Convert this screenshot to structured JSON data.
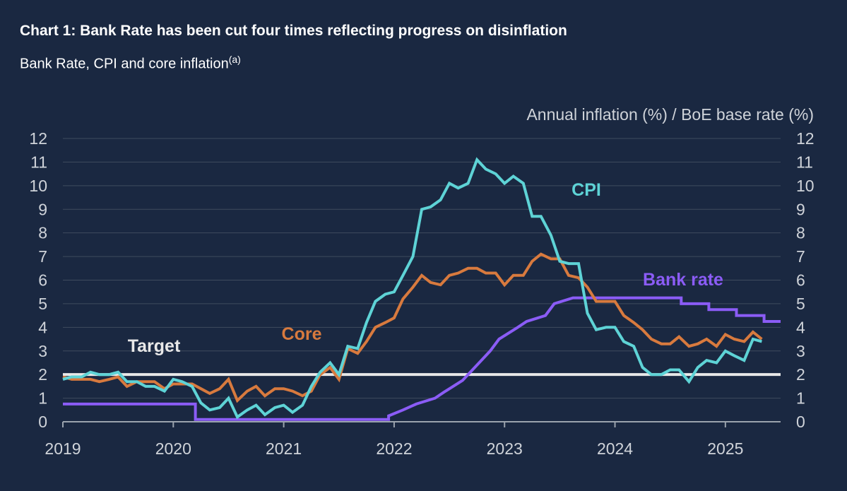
{
  "header": {
    "title": "Chart 1: Bank Rate has been cut four times reflecting progress on disinflation",
    "subtitle": "Bank Rate, CPI and core inflation",
    "subtitle_note": "(a)"
  },
  "chart_data": {
    "type": "line",
    "ylabel": "Annual inflation (%) / BoE base rate (%)",
    "ylim": [
      0,
      12
    ],
    "yticks": [
      "0",
      "1",
      "2",
      "3",
      "4",
      "5",
      "6",
      "7",
      "8",
      "9",
      "10",
      "11",
      "12"
    ],
    "xlim": [
      2019.0,
      2025.5
    ],
    "xticks": [
      {
        "value": 2019,
        "label": "2019"
      },
      {
        "value": 2020,
        "label": "2020"
      },
      {
        "value": 2021,
        "label": "2021"
      },
      {
        "value": 2022,
        "label": "2022"
      },
      {
        "value": 2023,
        "label": "2023"
      },
      {
        "value": 2024,
        "label": "2024"
      },
      {
        "value": 2025,
        "label": "2025"
      }
    ],
    "target": {
      "label": "Target",
      "value": 2,
      "color": "#e8e8e8"
    },
    "series": [
      {
        "name": "Bank rate",
        "label": "Bank rate",
        "color": "#8b5cf6",
        "step": true,
        "points": [
          [
            2019.0,
            0.75
          ],
          [
            2020.2,
            0.75
          ],
          [
            2020.2,
            0.1
          ],
          [
            2021.95,
            0.1
          ],
          [
            2021.95,
            0.25
          ],
          [
            2022.08,
            0.5
          ],
          [
            2022.2,
            0.75
          ],
          [
            2022.37,
            1.0
          ],
          [
            2022.45,
            1.25
          ],
          [
            2022.62,
            1.75
          ],
          [
            2022.72,
            2.25
          ],
          [
            2022.87,
            3.0
          ],
          [
            2022.95,
            3.5
          ],
          [
            2023.12,
            4.0
          ],
          [
            2023.2,
            4.25
          ],
          [
            2023.37,
            4.5
          ],
          [
            2023.45,
            5.0
          ],
          [
            2023.62,
            5.25
          ],
          [
            2024.6,
            5.25
          ],
          [
            2024.6,
            5.0
          ],
          [
            2024.85,
            5.0
          ],
          [
            2024.85,
            4.75
          ],
          [
            2025.1,
            4.75
          ],
          [
            2025.1,
            4.5
          ],
          [
            2025.35,
            4.5
          ],
          [
            2025.35,
            4.25
          ],
          [
            2025.5,
            4.25
          ]
        ]
      },
      {
        "name": "CPI",
        "label": "CPI",
        "color": "#5ed3d6",
        "step": false,
        "points": [
          [
            2019.0,
            1.8
          ],
          [
            2019.08,
            1.9
          ],
          [
            2019.17,
            1.9
          ],
          [
            2019.25,
            2.1
          ],
          [
            2019.33,
            2.0
          ],
          [
            2019.42,
            2.0
          ],
          [
            2019.5,
            2.1
          ],
          [
            2019.58,
            1.7
          ],
          [
            2019.67,
            1.7
          ],
          [
            2019.75,
            1.5
          ],
          [
            2019.83,
            1.5
          ],
          [
            2019.92,
            1.3
          ],
          [
            2020.0,
            1.8
          ],
          [
            2020.08,
            1.7
          ],
          [
            2020.17,
            1.5
          ],
          [
            2020.25,
            0.8
          ],
          [
            2020.33,
            0.5
          ],
          [
            2020.42,
            0.6
          ],
          [
            2020.5,
            1.0
          ],
          [
            2020.58,
            0.2
          ],
          [
            2020.67,
            0.5
          ],
          [
            2020.75,
            0.7
          ],
          [
            2020.83,
            0.3
          ],
          [
            2020.92,
            0.6
          ],
          [
            2021.0,
            0.7
          ],
          [
            2021.08,
            0.4
          ],
          [
            2021.17,
            0.7
          ],
          [
            2021.25,
            1.5
          ],
          [
            2021.33,
            2.1
          ],
          [
            2021.42,
            2.5
          ],
          [
            2021.5,
            2.0
          ],
          [
            2021.58,
            3.2
          ],
          [
            2021.67,
            3.1
          ],
          [
            2021.75,
            4.2
          ],
          [
            2021.83,
            5.1
          ],
          [
            2021.92,
            5.4
          ],
          [
            2022.0,
            5.5
          ],
          [
            2022.08,
            6.2
          ],
          [
            2022.17,
            7.0
          ],
          [
            2022.25,
            9.0
          ],
          [
            2022.33,
            9.1
          ],
          [
            2022.42,
            9.4
          ],
          [
            2022.5,
            10.1
          ],
          [
            2022.58,
            9.9
          ],
          [
            2022.67,
            10.1
          ],
          [
            2022.75,
            11.1
          ],
          [
            2022.83,
            10.7
          ],
          [
            2022.92,
            10.5
          ],
          [
            2023.0,
            10.1
          ],
          [
            2023.08,
            10.4
          ],
          [
            2023.17,
            10.1
          ],
          [
            2023.25,
            8.7
          ],
          [
            2023.33,
            8.7
          ],
          [
            2023.42,
            7.9
          ],
          [
            2023.5,
            6.8
          ],
          [
            2023.58,
            6.7
          ],
          [
            2023.67,
            6.7
          ],
          [
            2023.75,
            4.6
          ],
          [
            2023.83,
            3.9
          ],
          [
            2023.92,
            4.0
          ],
          [
            2024.0,
            4.0
          ],
          [
            2024.08,
            3.4
          ],
          [
            2024.17,
            3.2
          ],
          [
            2024.25,
            2.3
          ],
          [
            2024.33,
            2.0
          ],
          [
            2024.42,
            2.0
          ],
          [
            2024.5,
            2.2
          ],
          [
            2024.58,
            2.2
          ],
          [
            2024.67,
            1.7
          ],
          [
            2024.75,
            2.3
          ],
          [
            2024.83,
            2.6
          ],
          [
            2024.92,
            2.5
          ],
          [
            2025.0,
            3.0
          ],
          [
            2025.08,
            2.8
          ],
          [
            2025.17,
            2.6
          ],
          [
            2025.25,
            3.5
          ],
          [
            2025.33,
            3.4
          ]
        ]
      },
      {
        "name": "Core",
        "label": "Core",
        "color": "#d87a3e",
        "step": false,
        "points": [
          [
            2019.0,
            1.9
          ],
          [
            2019.08,
            1.8
          ],
          [
            2019.17,
            1.8
          ],
          [
            2019.25,
            1.8
          ],
          [
            2019.33,
            1.7
          ],
          [
            2019.42,
            1.8
          ],
          [
            2019.5,
            1.9
          ],
          [
            2019.58,
            1.5
          ],
          [
            2019.67,
            1.7
          ],
          [
            2019.75,
            1.7
          ],
          [
            2019.83,
            1.7
          ],
          [
            2019.92,
            1.4
          ],
          [
            2020.0,
            1.6
          ],
          [
            2020.08,
            1.6
          ],
          [
            2020.17,
            1.6
          ],
          [
            2020.25,
            1.4
          ],
          [
            2020.33,
            1.2
          ],
          [
            2020.42,
            1.4
          ],
          [
            2020.5,
            1.8
          ],
          [
            2020.58,
            0.9
          ],
          [
            2020.67,
            1.3
          ],
          [
            2020.75,
            1.5
          ],
          [
            2020.83,
            1.1
          ],
          [
            2020.92,
            1.4
          ],
          [
            2021.0,
            1.4
          ],
          [
            2021.08,
            1.3
          ],
          [
            2021.17,
            1.1
          ],
          [
            2021.25,
            1.3
          ],
          [
            2021.33,
            2.0
          ],
          [
            2021.42,
            2.3
          ],
          [
            2021.5,
            1.8
          ],
          [
            2021.58,
            3.1
          ],
          [
            2021.67,
            2.9
          ],
          [
            2021.75,
            3.4
          ],
          [
            2021.83,
            4.0
          ],
          [
            2021.92,
            4.2
          ],
          [
            2022.0,
            4.4
          ],
          [
            2022.08,
            5.2
          ],
          [
            2022.17,
            5.7
          ],
          [
            2022.25,
            6.2
          ],
          [
            2022.33,
            5.9
          ],
          [
            2022.42,
            5.8
          ],
          [
            2022.5,
            6.2
          ],
          [
            2022.58,
            6.3
          ],
          [
            2022.67,
            6.5
          ],
          [
            2022.75,
            6.5
          ],
          [
            2022.83,
            6.3
          ],
          [
            2022.92,
            6.3
          ],
          [
            2023.0,
            5.8
          ],
          [
            2023.08,
            6.2
          ],
          [
            2023.17,
            6.2
          ],
          [
            2023.25,
            6.8
          ],
          [
            2023.33,
            7.1
          ],
          [
            2023.42,
            6.9
          ],
          [
            2023.5,
            6.9
          ],
          [
            2023.58,
            6.2
          ],
          [
            2023.67,
            6.1
          ],
          [
            2023.75,
            5.7
          ],
          [
            2023.83,
            5.1
          ],
          [
            2023.92,
            5.1
          ],
          [
            2024.0,
            5.1
          ],
          [
            2024.08,
            4.5
          ],
          [
            2024.17,
            4.2
          ],
          [
            2024.25,
            3.9
          ],
          [
            2024.33,
            3.5
          ],
          [
            2024.42,
            3.3
          ],
          [
            2024.5,
            3.3
          ],
          [
            2024.58,
            3.6
          ],
          [
            2024.67,
            3.2
          ],
          [
            2024.75,
            3.3
          ],
          [
            2024.83,
            3.5
          ],
          [
            2024.92,
            3.2
          ],
          [
            2025.0,
            3.7
          ],
          [
            2025.08,
            3.5
          ],
          [
            2025.17,
            3.4
          ],
          [
            2025.25,
            3.8
          ],
          [
            2025.33,
            3.5
          ]
        ]
      }
    ]
  }
}
